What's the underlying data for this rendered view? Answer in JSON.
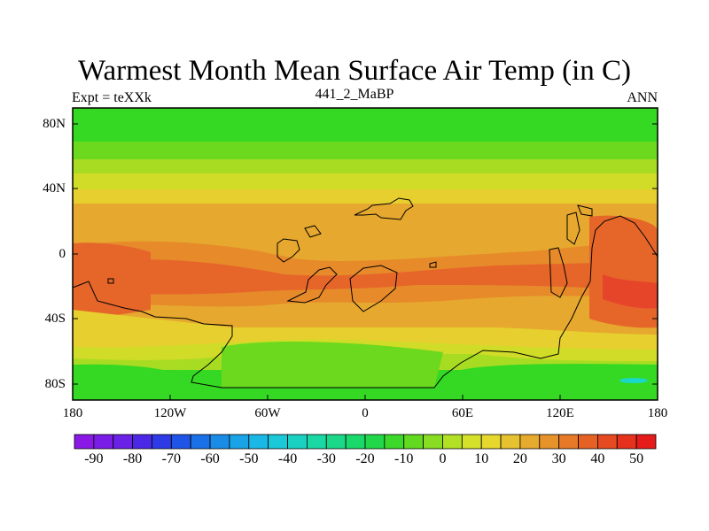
{
  "title": "Warmest Month Mean Surface Air Temp (in C)",
  "left_string": "Expt = teXXk",
  "center_string": "441_2_MaBP",
  "right_string": "ANN",
  "lat_labels": [
    "80N",
    "40N",
    "0",
    "40S",
    "80S"
  ],
  "lon_labels": [
    "180",
    "120W",
    "60W",
    "0",
    "60E",
    "120E",
    "180"
  ],
  "colorbar": {
    "labels": [
      "-90",
      "-80",
      "-70",
      "-60",
      "-50",
      "-40",
      "-30",
      "-20",
      "-10",
      "0",
      "10",
      "20",
      "30",
      "40",
      "50"
    ],
    "colors": [
      "#8a19e6",
      "#7a1de6",
      "#6a22e6",
      "#4b28e6",
      "#2d3ae6",
      "#1f55e6",
      "#1a70e6",
      "#1a8ce6",
      "#1aa3e6",
      "#1ab8e6",
      "#1ac8d8",
      "#1ad0c0",
      "#1ad8a4",
      "#1ad888",
      "#1ad86a",
      "#22d84a",
      "#3cd82a",
      "#62da1f",
      "#88dc22",
      "#b2e025",
      "#d4e02a",
      "#e6d82e",
      "#e6c230",
      "#e6aa2e",
      "#e6932c",
      "#e67a28",
      "#e66224",
      "#e64a20",
      "#e6321c",
      "#e61c1a"
    ]
  },
  "colors": {
    "cold_band": "#35d823",
    "cool_band": "#6cd81e",
    "mild_band": "#a8dc22",
    "warm_band": "#d0dc28",
    "warmer_band": "#e6cf2e",
    "hot_band": "#e6a82e",
    "hotter_band": "#e68a2a",
    "very_hot": "#e6662a",
    "extreme": "#e6452a",
    "cyan_patch": "#1ad8c8"
  }
}
